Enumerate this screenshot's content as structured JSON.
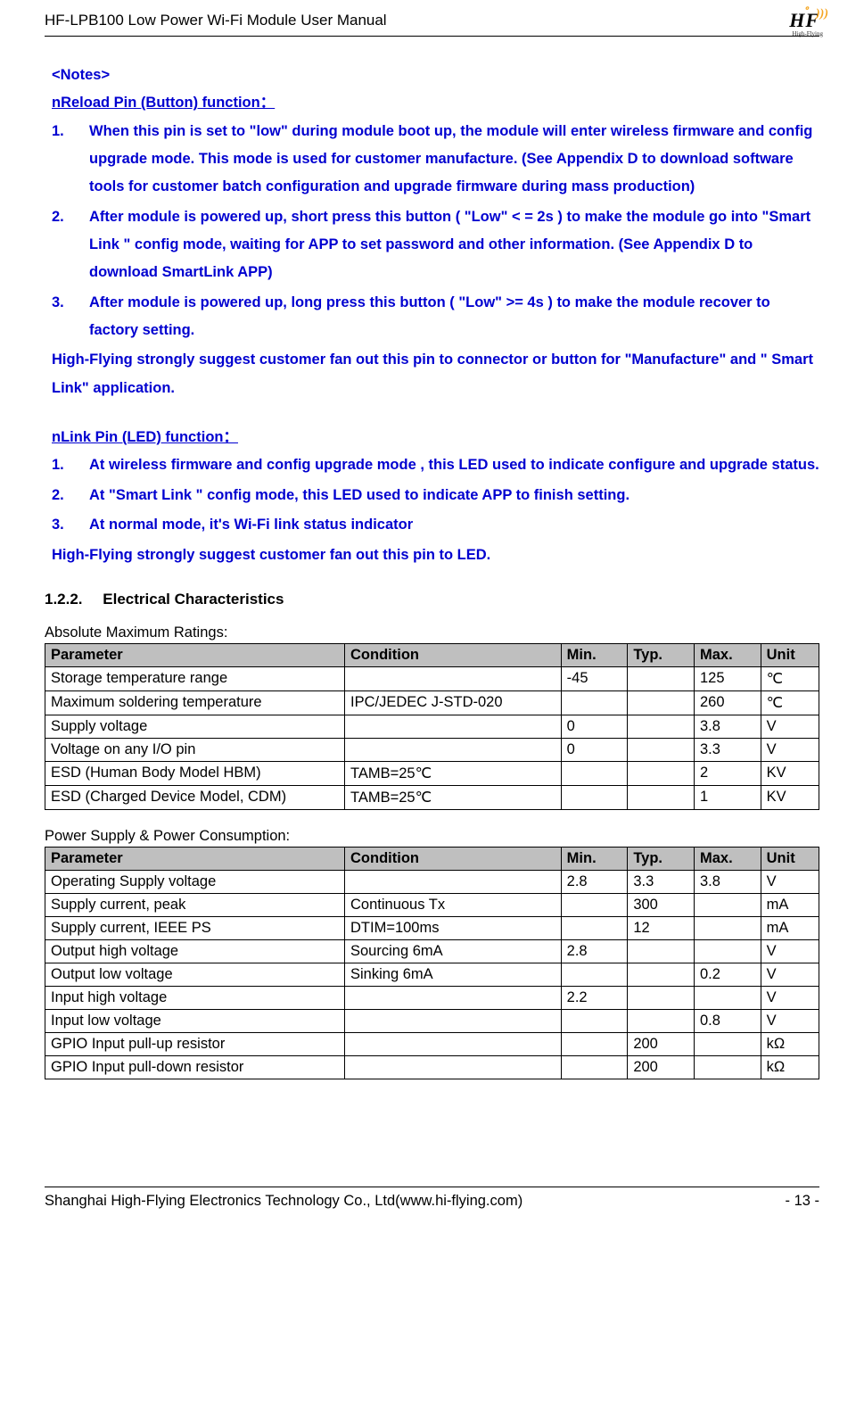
{
  "header": {
    "doc_title": "HF-LPB100 Low Power Wi-Fi Module User Manual",
    "logo_main": "HF",
    "logo_sup": "゜)))",
    "logo_sub": "High-Flying"
  },
  "notes": {
    "title": "<Notes>",
    "nreload_heading": "nReload Pin (Button) function：",
    "nreload_items": [
      "When this pin is set to \"low\" during module boot up, the module will enter wireless firmware and config upgrade mode. This mode is used for customer manufacture. (See Appendix D to download software tools for customer batch configuration and upgrade firmware during mass production)",
      "After module is powered up, short press this button ( \"Low\"  < = 2s ) to make the module go into \"Smart Link \" config mode,  waiting for APP to set password and other information. (See Appendix D to download SmartLink APP)",
      "After module is powered up, long press this button ( \"Low\"  >=  4s ) to make the module recover to factory setting."
    ],
    "nreload_note": "High-Flying strongly suggest customer fan out this pin to connector or button for \"Manufacture\" and \" Smart Link\" application.",
    "nlink_heading": "nLink Pin (LED) function：",
    "nlink_items": [
      "At wireless firmware and config upgrade mode , this LED used to indicate configure and upgrade status.",
      "At \"Smart Link \" config mode, this LED used to indicate APP to finish setting.",
      "At normal mode, it's Wi-Fi link status indicator"
    ],
    "nlink_note": "High-Flying strongly suggest customer fan out this pin to LED."
  },
  "section": {
    "number": "1.2.2.",
    "title": "Electrical Characteristics"
  },
  "table1": {
    "caption": "Absolute Maximum Ratings:",
    "headers": [
      "Parameter",
      "Condition",
      "Min.",
      "Typ.",
      "Max.",
      "Unit"
    ],
    "rows": [
      [
        "Storage temperature range",
        "",
        "-45",
        "",
        "125",
        "℃"
      ],
      [
        "Maximum soldering temperature",
        "IPC/JEDEC J-STD-020",
        "",
        "",
        "260",
        "℃"
      ],
      [
        "Supply voltage",
        "",
        "0",
        "",
        "3.8",
        "V"
      ],
      [
        "Voltage on any I/O pin",
        "",
        "0",
        "",
        "3.3",
        "V"
      ],
      [
        "ESD (Human Body Model HBM)",
        "TAMB=25℃",
        "",
        "",
        "2",
        "KV"
      ],
      [
        "ESD (Charged Device Model, CDM)",
        "TAMB=25℃",
        "",
        "",
        "1",
        "KV"
      ]
    ]
  },
  "table2": {
    "caption": "Power Supply & Power Consumption:",
    "headers": [
      "Parameter",
      "Condition",
      "Min.",
      "Typ.",
      "Max.",
      "Unit"
    ],
    "rows": [
      [
        "Operating Supply voltage",
        "",
        "2.8",
        "3.3",
        "3.8",
        "V"
      ],
      [
        "Supply current, peak",
        "Continuous Tx",
        "",
        "300",
        "",
        "mA"
      ],
      [
        "Supply current, IEEE PS",
        "DTIM=100ms",
        "",
        " 12",
        "",
        "mA"
      ],
      [
        "Output high voltage",
        "Sourcing 6mA",
        "2.8",
        "",
        "",
        "V"
      ],
      [
        "Output low voltage",
        "Sinking 6mA",
        "",
        "",
        "0.2",
        "V"
      ],
      [
        "Input high voltage",
        "",
        "2.2",
        "",
        "",
        "V"
      ],
      [
        "Input low voltage",
        "",
        "",
        "",
        "0.8",
        "V"
      ],
      [
        "GPIO Input pull-up resistor",
        "",
        "",
        "200",
        "",
        "kΩ"
      ],
      [
        "GPIO Input pull-down resistor",
        "",
        "",
        "200",
        "",
        "kΩ"
      ]
    ]
  },
  "footer": {
    "company": "Shanghai High-Flying Electronics Technology Co., Ltd(www.hi-flying.com)",
    "page": "- 13 -"
  }
}
